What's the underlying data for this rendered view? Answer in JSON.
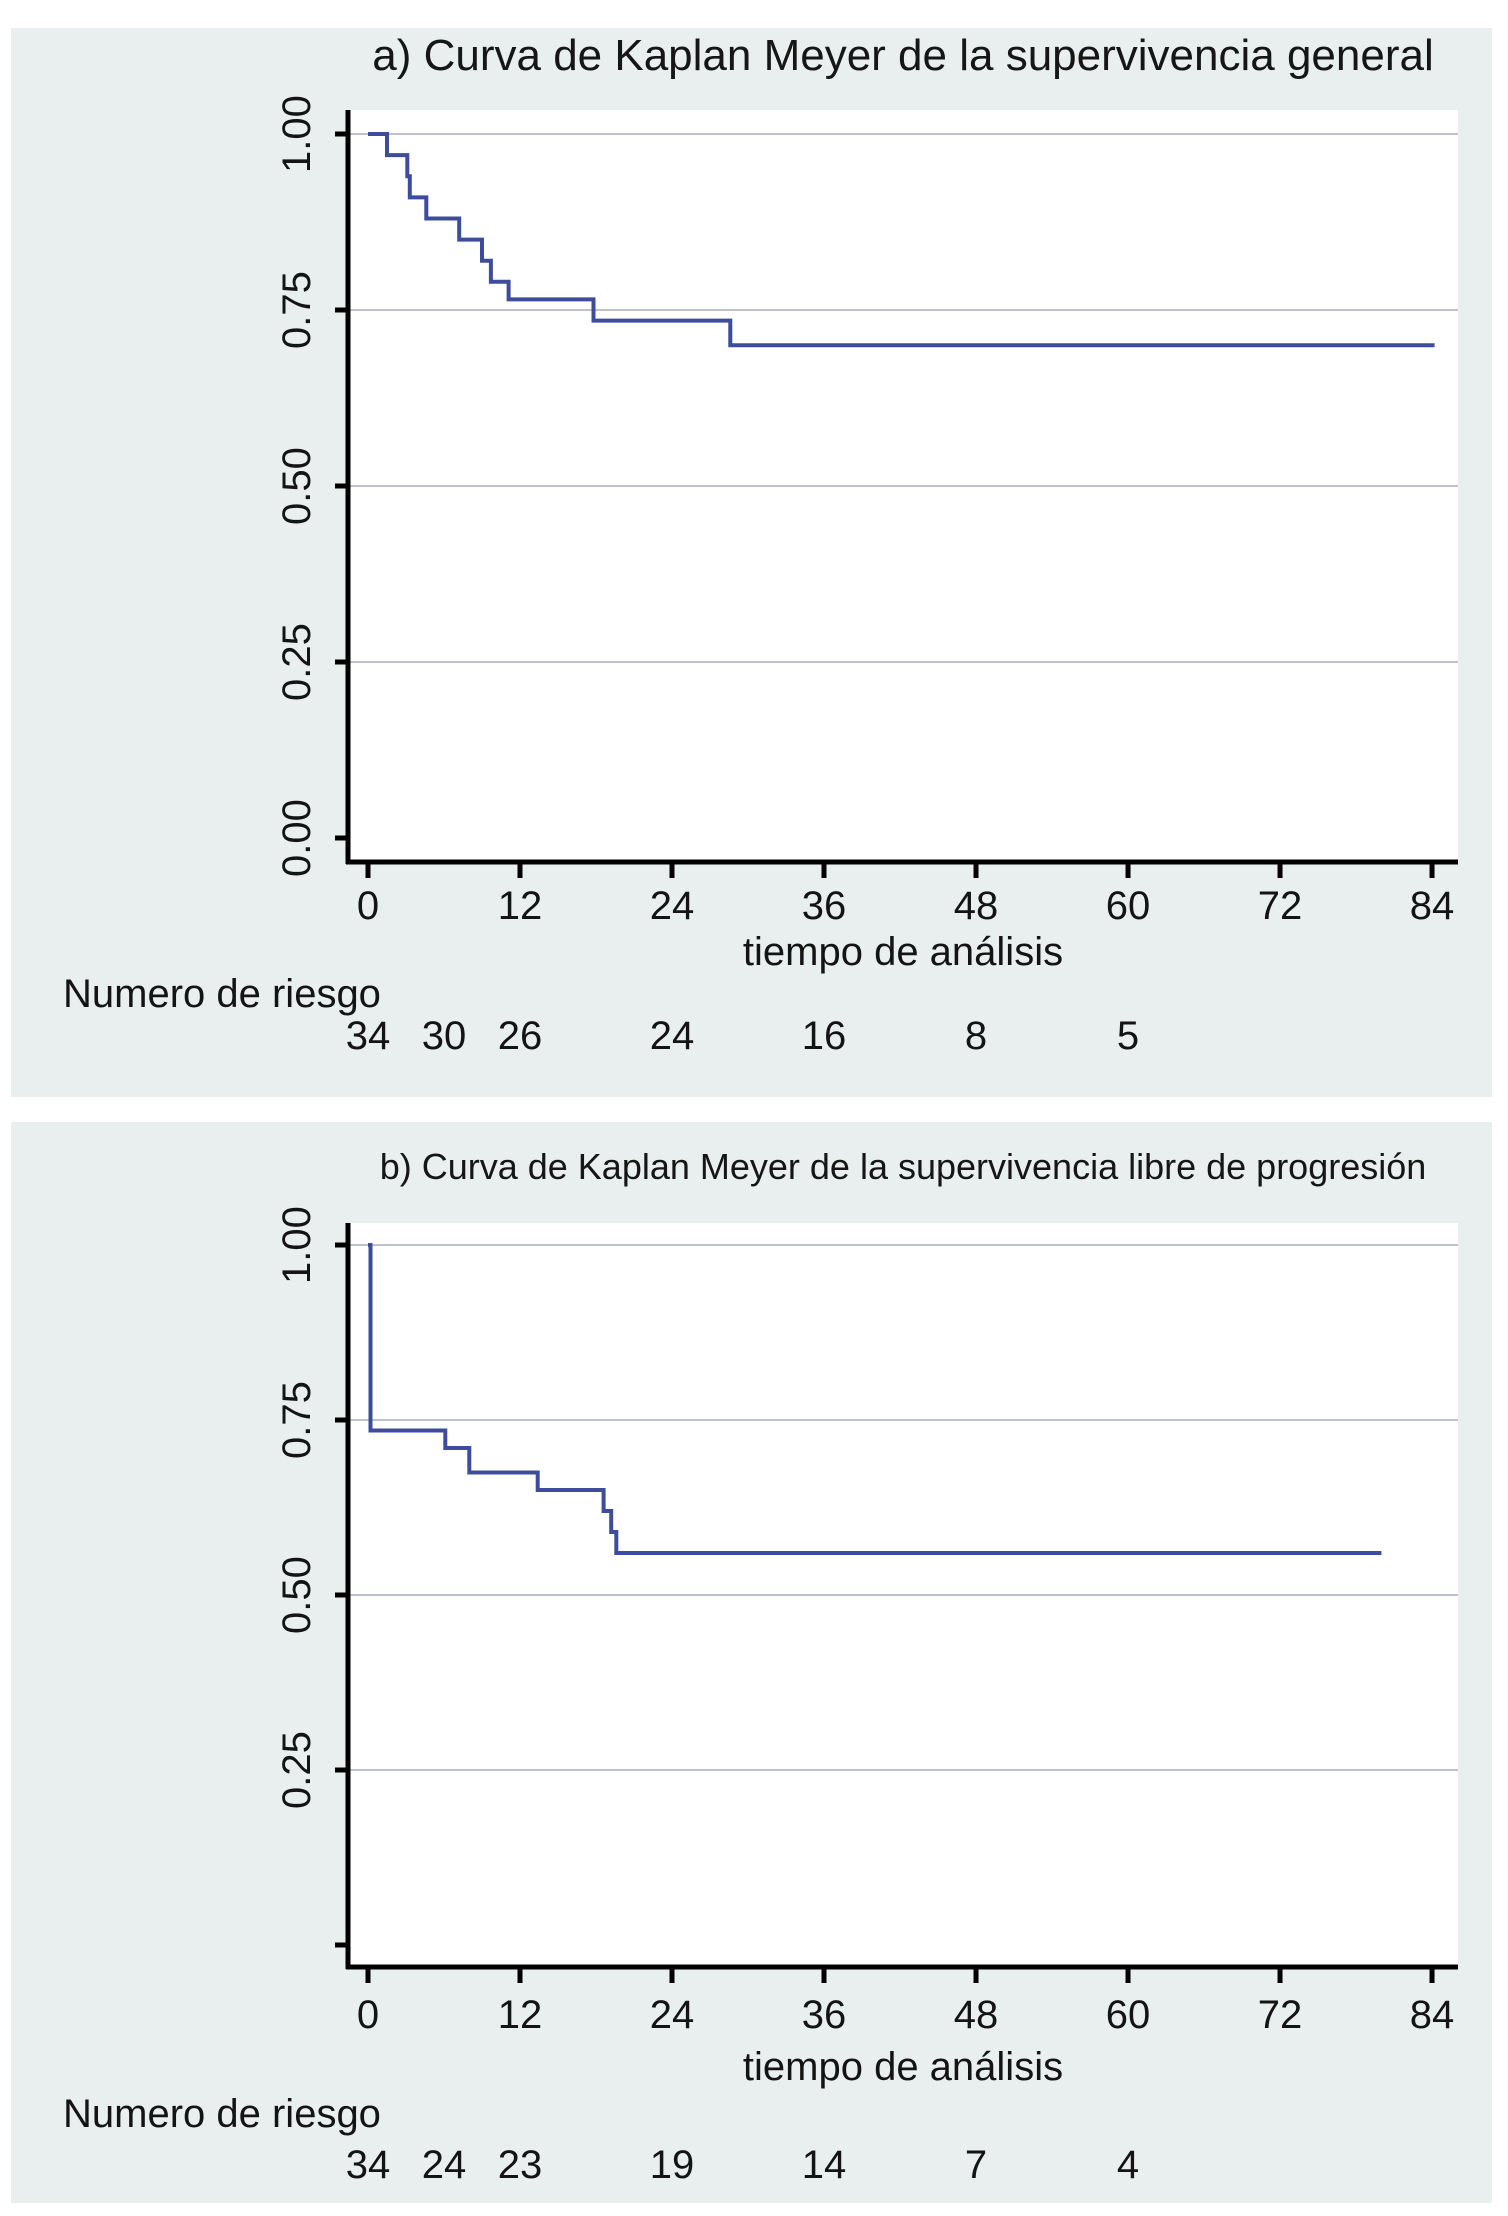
{
  "colors": {
    "page_bg": "#ffffff",
    "panel_bg": "#e9efee",
    "plot_bg": "#ffffff",
    "grid": "#bcc3cd",
    "axis": "#000000",
    "text": "#141414",
    "curve": "#3e4c9c"
  },
  "chart_data": [
    {
      "type": "line",
      "subtype": "kaplan-meier-step",
      "title": "a) Curva de Kaplan Meyer de la supervivencia general",
      "xlabel": "tiempo de análisis",
      "ylabel": "",
      "xlim": [
        0,
        86
      ],
      "ylim": [
        0,
        1.07
      ],
      "grid_on": true,
      "legend": "none",
      "xticks": [
        0,
        12,
        24,
        36,
        48,
        60,
        72,
        84
      ],
      "yticks": [
        {
          "v": 0.0,
          "label": "0.00"
        },
        {
          "v": 0.25,
          "label": "0.25"
        },
        {
          "v": 0.5,
          "label": "0.50"
        },
        {
          "v": 0.75,
          "label": "0.75"
        },
        {
          "v": 1.0,
          "label": "1.00"
        }
      ],
      "grid_at": [
        0.25,
        0.5,
        0.75,
        1.0
      ],
      "series": [
        {
          "name": "supervivencia general",
          "steps": [
            [
              0,
              1.0
            ],
            [
              1.5,
              0.97
            ],
            [
              3.1,
              0.94
            ],
            [
              3.3,
              0.91
            ],
            [
              4.6,
              0.88
            ],
            [
              7.2,
              0.85
            ],
            [
              9.0,
              0.82
            ],
            [
              9.7,
              0.79
            ],
            [
              11.1,
              0.765
            ],
            [
              17.8,
              0.735
            ],
            [
              28.6,
              0.7
            ]
          ],
          "end_time": 84.2
        }
      ],
      "risk_table": {
        "label": "Numero de riesgo",
        "times": [
          0,
          6,
          12,
          24,
          36,
          48,
          60
        ],
        "counts": [
          34,
          30,
          26,
          24,
          16,
          8,
          5
        ]
      }
    },
    {
      "type": "line",
      "subtype": "kaplan-meier-step",
      "title": "b) Curva de Kaplan Meyer de la supervivencia libre de progresión",
      "xlabel": "tiempo de análisis",
      "ylabel": "",
      "xlim": [
        0,
        86
      ],
      "ylim": [
        0,
        1.07
      ],
      "grid_on": true,
      "legend": "none",
      "xticks": [
        0,
        12,
        24,
        36,
        48,
        60,
        72,
        84
      ],
      "yticks": [
        {
          "v": 0.0,
          "label": ""
        },
        {
          "v": 0.25,
          "label": "0.25"
        },
        {
          "v": 0.5,
          "label": "0.50"
        },
        {
          "v": 0.75,
          "label": "0.75"
        },
        {
          "v": 1.0,
          "label": "1.00"
        }
      ],
      "grid_at": [
        0.25,
        0.5,
        0.75,
        1.0
      ],
      "series": [
        {
          "name": "supervivencia libre de progresión",
          "steps": [
            [
              0,
              1.0
            ],
            [
              0.2,
              0.735
            ],
            [
              6.1,
              0.71
            ],
            [
              8.0,
              0.675
            ],
            [
              13.4,
              0.65
            ],
            [
              18.6,
              0.62
            ],
            [
              19.2,
              0.59
            ],
            [
              19.6,
              0.56
            ]
          ],
          "end_time": 80
        }
      ],
      "risk_table": {
        "label": "Numero de riesgo",
        "times": [
          0,
          6,
          12,
          24,
          36,
          48,
          60
        ],
        "counts": [
          34,
          24,
          23,
          19,
          14,
          7,
          4
        ]
      }
    }
  ]
}
